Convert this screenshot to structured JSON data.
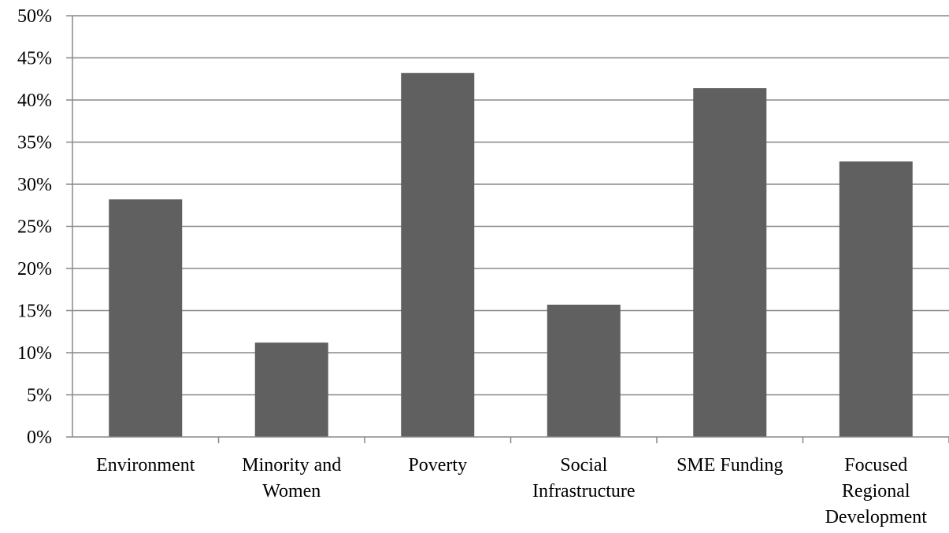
{
  "chart_data": {
    "type": "bar",
    "title": "",
    "xlabel": "",
    "ylabel": "",
    "categories": [
      [
        "Environment"
      ],
      [
        "Minority and",
        "Women"
      ],
      [
        "Poverty"
      ],
      [
        "Social",
        "Infrastructure"
      ],
      [
        "SME Funding"
      ],
      [
        "Focused",
        "Regional",
        "Development"
      ]
    ],
    "values": [
      28.2,
      11.2,
      43.2,
      15.7,
      41.4,
      32.7
    ],
    "ylim": [
      0,
      50
    ],
    "yticks": [
      0,
      5,
      10,
      15,
      20,
      25,
      30,
      35,
      40,
      45,
      50
    ],
    "ytick_suffix": "%",
    "grid": true,
    "legend": "none",
    "colors": {
      "bar": "#606060",
      "grid": "#888888",
      "axis": "#888888"
    }
  }
}
